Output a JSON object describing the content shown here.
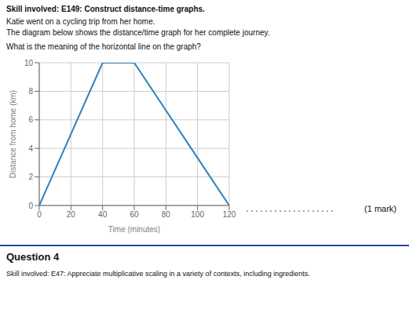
{
  "chart_data": {
    "type": "line",
    "title": "Skill involved: E149: Construct distance-time graphs.",
    "annotations": [
      "Katie went on a cycling trip from her home.",
      "The diagram below shows the distance/time graph for her complete journey.",
      "What is the meaning of the horizontal line on the graph?",
      "...................",
      "(1 mark)",
      "Question 4",
      "Skill involved: E47: Appreciate multiplicative scaling in a variety of contexts, including ingredients."
    ],
    "x": [
      0,
      40,
      60,
      120
    ],
    "values": [
      0,
      10,
      10,
      0
    ],
    "xlabel": "Time (minutes)",
    "ylabel": "Distance from home (km)",
    "xlim": [
      0,
      120
    ],
    "ylim": [
      0,
      10
    ],
    "xticks": [
      0,
      20,
      40,
      60,
      80,
      100,
      120
    ],
    "yticks": [
      0,
      2,
      4,
      6,
      8,
      10
    ],
    "grid": true
  }
}
